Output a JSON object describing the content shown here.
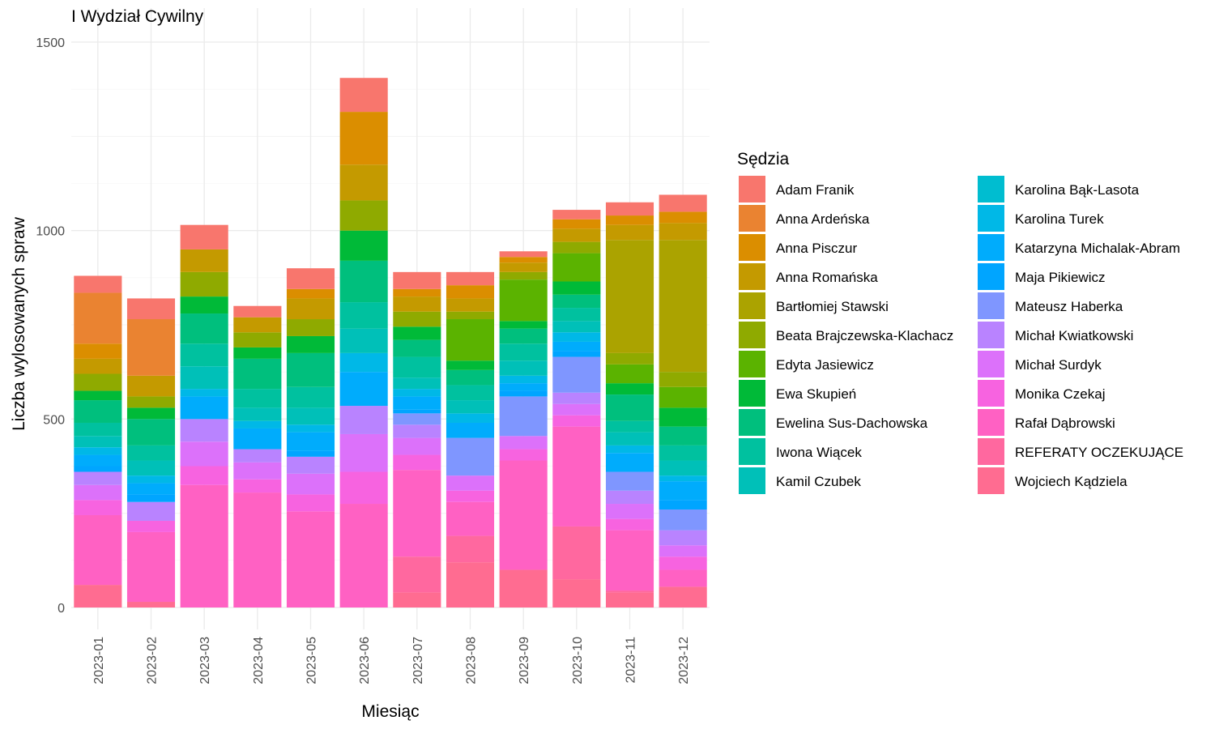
{
  "chart_data": {
    "type": "bar",
    "stacked": true,
    "title": "I Wydział Cywilny",
    "xlabel": "Miesiąc",
    "ylabel": "Liczba wylosowanych spraw",
    "ylim": [
      0,
      1550
    ],
    "yticks": [
      0,
      500,
      1000,
      1500
    ],
    "grid": true,
    "legend_title": "Sędzia",
    "legend_position": "right",
    "categories": [
      "2023-01",
      "2023-02",
      "2023-03",
      "2023-04",
      "2023-05",
      "2023-06",
      "2023-07",
      "2023-08",
      "2023-09",
      "2023-10",
      "2023-11",
      "2023-12"
    ],
    "series": [
      {
        "name": "Wojciech Kądziela",
        "color": "#FF6C91",
        "values": [
          60,
          15,
          0,
          0,
          0,
          0,
          40,
          120,
          100,
          75,
          40,
          55
        ]
      },
      {
        "name": "REFERATY OCZEKUJĄCE",
        "color": "#FF689F",
        "values": [
          0,
          0,
          0,
          0,
          0,
          0,
          95,
          70,
          0,
          140,
          5,
          0
        ]
      },
      {
        "name": "Rafał Dąbrowski",
        "color": "#FF61C3",
        "values": [
          185,
          185,
          325,
          305,
          255,
          275,
          230,
          90,
          290,
          265,
          160,
          45
        ]
      },
      {
        "name": "Monika Czekaj",
        "color": "#F763E0",
        "values": [
          40,
          30,
          50,
          35,
          45,
          85,
          40,
          30,
          30,
          30,
          30,
          35
        ]
      },
      {
        "name": "Michał Surdyk",
        "color": "#DC71FA",
        "values": [
          40,
          0,
          65,
          45,
          55,
          100,
          45,
          40,
          35,
          30,
          40,
          30
        ]
      },
      {
        "name": "Michał Kwiatkowski",
        "color": "#B983FF",
        "values": [
          35,
          50,
          60,
          35,
          45,
          75,
          35,
          0,
          0,
          30,
          35,
          40
        ]
      },
      {
        "name": "Mateusz Haberka",
        "color": "#7F96FF",
        "values": [
          0,
          0,
          0,
          0,
          0,
          0,
          30,
          100,
          105,
          95,
          50,
          55
        ]
      },
      {
        "name": "Maja Pikiewicz",
        "color": "#00A5FF",
        "values": [
          15,
          20,
          0,
          0,
          15,
          0,
          10,
          0,
          15,
          15,
          0,
          25
        ]
      },
      {
        "name": "Katarzyna Michalak-Abram",
        "color": "#00ACFC",
        "values": [
          30,
          30,
          60,
          55,
          50,
          90,
          35,
          40,
          20,
          25,
          50,
          50
        ]
      },
      {
        "name": "Karolina Turek",
        "color": "#00B8E7",
        "values": [
          20,
          20,
          20,
          20,
          20,
          50,
          20,
          25,
          20,
          25,
          20,
          15
        ]
      },
      {
        "name": "Karolina Bąk-Lasota",
        "color": "#00BDD0",
        "values": [
          0,
          0,
          0,
          0,
          0,
          0,
          0,
          0,
          0,
          0,
          0,
          0
        ]
      },
      {
        "name": "Kamil Czubek",
        "color": "#00C0B8",
        "values": [
          30,
          40,
          60,
          35,
          45,
          65,
          30,
          35,
          40,
          30,
          35,
          40
        ]
      },
      {
        "name": "Iwona Wiącek",
        "color": "#00C19F",
        "values": [
          35,
          40,
          60,
          50,
          55,
          70,
          55,
          40,
          45,
          35,
          30,
          40
        ]
      },
      {
        "name": "Ewelina Sus-Dachowska",
        "color": "#00BF7D",
        "values": [
          60,
          70,
          80,
          80,
          90,
          110,
          45,
          40,
          40,
          35,
          70,
          50
        ]
      },
      {
        "name": "Ewa Skupień",
        "color": "#00BA38",
        "values": [
          25,
          30,
          45,
          30,
          45,
          80,
          35,
          25,
          20,
          35,
          30,
          50
        ]
      },
      {
        "name": "Edyta Jasiewicz",
        "color": "#5BB300",
        "values": [
          0,
          0,
          0,
          0,
          0,
          0,
          0,
          110,
          110,
          75,
          50,
          55
        ]
      },
      {
        "name": "Beata Brajczewska-Klachacz",
        "color": "#8FAA00",
        "values": [
          45,
          30,
          65,
          40,
          45,
          80,
          40,
          20,
          20,
          30,
          30,
          40
        ]
      },
      {
        "name": "Bartłomiej Stawski",
        "color": "#ABA300",
        "values": [
          0,
          0,
          0,
          0,
          0,
          0,
          0,
          0,
          0,
          0,
          300,
          350
        ]
      },
      {
        "name": "Anna Romańska",
        "color": "#C49A00",
        "values": [
          40,
          55,
          60,
          40,
          55,
          95,
          40,
          35,
          25,
          35,
          40,
          45
        ]
      },
      {
        "name": "Anna Pisczur",
        "color": "#DB8E00",
        "values": [
          40,
          0,
          0,
          0,
          25,
          140,
          20,
          35,
          15,
          25,
          25,
          30
        ]
      },
      {
        "name": "Anna Ardeńska",
        "color": "#EA8331",
        "values": [
          135,
          150,
          0,
          0,
          0,
          0,
          0,
          0,
          0,
          0,
          0,
          0
        ]
      },
      {
        "name": "Adam Franik",
        "color": "#F8766D",
        "values": [
          45,
          55,
          65,
          30,
          55,
          90,
          45,
          35,
          15,
          25,
          35,
          45
        ]
      }
    ],
    "legend_columns": [
      [
        "Adam Franik",
        "Anna Ardeńska",
        "Anna Pisczur",
        "Anna Romańska",
        "Bartłomiej Stawski",
        "Beata Brajczewska-Klachacz",
        "Edyta Jasiewicz",
        "Ewa Skupień",
        "Ewelina Sus-Dachowska",
        "Iwona Wiącek",
        "Kamil Czubek"
      ],
      [
        "Karolina Bąk-Lasota",
        "Karolina Turek",
        "Katarzyna Michalak-Abram",
        "Maja Pikiewicz",
        "Mateusz Haberka",
        "Michał Kwiatkowski",
        "Michał Surdyk",
        "Monika Czekaj",
        "Rafał Dąbrowski",
        "REFERATY OCZEKUJĄCE",
        "Wojciech Kądziela"
      ]
    ]
  }
}
